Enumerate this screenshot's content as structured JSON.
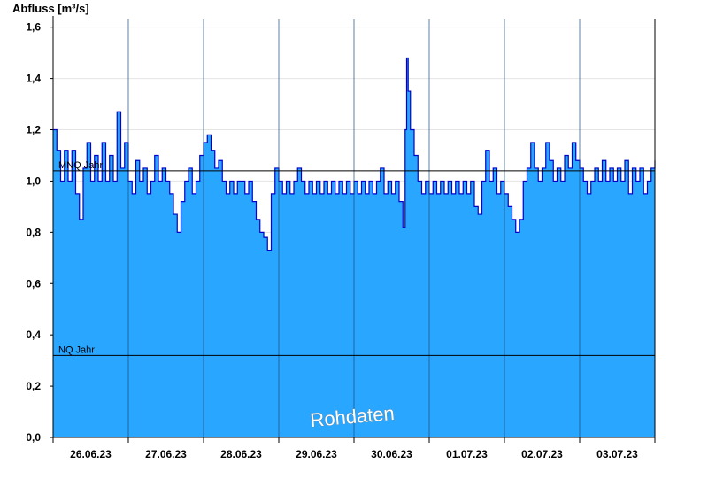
{
  "chart_data": {
    "type": "area",
    "ylabel": "Abfluss [m³/s]",
    "ylim": [
      0,
      1.63
    ],
    "yticks": [
      {
        "value": 0.0,
        "label": "0,0"
      },
      {
        "value": 0.2,
        "label": "0,2"
      },
      {
        "value": 0.4,
        "label": "0,4"
      },
      {
        "value": 0.6,
        "label": "0,6"
      },
      {
        "value": 0.8,
        "label": "0,8"
      },
      {
        "value": 1.0,
        "label": "1,0"
      },
      {
        "value": 1.2,
        "label": "1,2"
      },
      {
        "value": 1.4,
        "label": "1,4"
      },
      {
        "value": 1.6,
        "label": "1,6"
      }
    ],
    "xlim": [
      0,
      8
    ],
    "x_unit": "days since 26.06.23 00:00",
    "day_labels": [
      "26.06.23",
      "27.06.23",
      "28.06.23",
      "29.06.23",
      "30.06.23",
      "01.07.23",
      "02.07.23",
      "03.07.23"
    ],
    "grid": true,
    "reference_lines": [
      {
        "name": "MNQ Jahr",
        "value": 1.04
      },
      {
        "name": "NQ Jahr",
        "value": 0.32
      }
    ],
    "annotation": "Rohdaten",
    "series": [
      {
        "name": "Abfluss",
        "fill_color": "#29a6ff",
        "line_color": "#0000cc",
        "points": [
          [
            0.0,
            1.2
          ],
          [
            0.05,
            1.12
          ],
          [
            0.1,
            1.0
          ],
          [
            0.15,
            1.12
          ],
          [
            0.2,
            1.0
          ],
          [
            0.25,
            1.12
          ],
          [
            0.3,
            0.95
          ],
          [
            0.35,
            0.85
          ],
          [
            0.4,
            1.05
          ],
          [
            0.45,
            1.15
          ],
          [
            0.5,
            1.0
          ],
          [
            0.55,
            1.1
          ],
          [
            0.6,
            1.0
          ],
          [
            0.65,
            1.15
          ],
          [
            0.7,
            1.0
          ],
          [
            0.75,
            1.1
          ],
          [
            0.8,
            1.0
          ],
          [
            0.85,
            1.27
          ],
          [
            0.9,
            1.05
          ],
          [
            0.95,
            1.15
          ],
          [
            1.0,
            1.0
          ],
          [
            1.05,
            0.95
          ],
          [
            1.1,
            1.08
          ],
          [
            1.15,
            1.0
          ],
          [
            1.2,
            1.05
          ],
          [
            1.25,
            0.95
          ],
          [
            1.3,
            1.0
          ],
          [
            1.35,
            1.1
          ],
          [
            1.4,
            1.0
          ],
          [
            1.45,
            1.05
          ],
          [
            1.5,
            1.0
          ],
          [
            1.55,
            0.95
          ],
          [
            1.6,
            0.87
          ],
          [
            1.65,
            0.8
          ],
          [
            1.7,
            0.92
          ],
          [
            1.75,
            1.0
          ],
          [
            1.8,
            1.05
          ],
          [
            1.85,
            0.95
          ],
          [
            1.9,
            1.0
          ],
          [
            1.95,
            1.1
          ],
          [
            2.0,
            1.15
          ],
          [
            2.05,
            1.18
          ],
          [
            2.1,
            1.12
          ],
          [
            2.15,
            1.05
          ],
          [
            2.2,
            1.08
          ],
          [
            2.25,
            1.0
          ],
          [
            2.3,
            0.95
          ],
          [
            2.35,
            1.0
          ],
          [
            2.4,
            0.95
          ],
          [
            2.45,
            1.0
          ],
          [
            2.5,
            1.0
          ],
          [
            2.55,
            0.95
          ],
          [
            2.6,
            1.0
          ],
          [
            2.65,
            0.92
          ],
          [
            2.7,
            0.85
          ],
          [
            2.75,
            0.8
          ],
          [
            2.8,
            0.78
          ],
          [
            2.85,
            0.73
          ],
          [
            2.9,
            0.95
          ],
          [
            2.95,
            1.05
          ],
          [
            3.0,
            1.0
          ],
          [
            3.05,
            0.95
          ],
          [
            3.1,
            1.0
          ],
          [
            3.15,
            0.95
          ],
          [
            3.2,
            1.0
          ],
          [
            3.25,
            1.05
          ],
          [
            3.3,
            1.0
          ],
          [
            3.35,
            0.95
          ],
          [
            3.4,
            1.0
          ],
          [
            3.45,
            0.95
          ],
          [
            3.5,
            1.0
          ],
          [
            3.55,
            0.95
          ],
          [
            3.6,
            1.0
          ],
          [
            3.65,
            0.95
          ],
          [
            3.7,
            1.0
          ],
          [
            3.75,
            0.95
          ],
          [
            3.8,
            1.0
          ],
          [
            3.85,
            0.95
          ],
          [
            3.9,
            1.0
          ],
          [
            3.95,
            0.95
          ],
          [
            4.0,
            1.0
          ],
          [
            4.05,
            0.95
          ],
          [
            4.1,
            1.0
          ],
          [
            4.15,
            0.95
          ],
          [
            4.2,
            1.0
          ],
          [
            4.25,
            0.95
          ],
          [
            4.3,
            1.0
          ],
          [
            4.35,
            1.05
          ],
          [
            4.4,
            0.95
          ],
          [
            4.45,
            1.0
          ],
          [
            4.5,
            0.95
          ],
          [
            4.55,
            1.0
          ],
          [
            4.6,
            0.92
          ],
          [
            4.65,
            0.82
          ],
          [
            4.68,
            1.2
          ],
          [
            4.7,
            1.48
          ],
          [
            4.72,
            1.35
          ],
          [
            4.75,
            1.2
          ],
          [
            4.8,
            1.1
          ],
          [
            4.85,
            1.0
          ],
          [
            4.9,
            0.95
          ],
          [
            4.95,
            1.0
          ],
          [
            5.0,
            0.95
          ],
          [
            5.05,
            1.0
          ],
          [
            5.1,
            0.95
          ],
          [
            5.15,
            1.0
          ],
          [
            5.2,
            0.95
          ],
          [
            5.25,
            1.0
          ],
          [
            5.3,
            0.95
          ],
          [
            5.35,
            1.0
          ],
          [
            5.4,
            0.95
          ],
          [
            5.45,
            1.0
          ],
          [
            5.5,
            0.95
          ],
          [
            5.55,
            1.0
          ],
          [
            5.6,
            0.9
          ],
          [
            5.65,
            0.87
          ],
          [
            5.7,
            1.0
          ],
          [
            5.75,
            1.12
          ],
          [
            5.8,
            1.0
          ],
          [
            5.85,
            1.05
          ],
          [
            5.9,
            0.95
          ],
          [
            5.95,
            1.0
          ],
          [
            6.0,
            0.95
          ],
          [
            6.05,
            0.9
          ],
          [
            6.1,
            0.85
          ],
          [
            6.15,
            0.8
          ],
          [
            6.2,
            0.85
          ],
          [
            6.25,
            1.0
          ],
          [
            6.3,
            1.05
          ],
          [
            6.35,
            1.15
          ],
          [
            6.4,
            1.05
          ],
          [
            6.45,
            1.0
          ],
          [
            6.5,
            1.05
          ],
          [
            6.55,
            1.15
          ],
          [
            6.6,
            1.08
          ],
          [
            6.65,
            1.0
          ],
          [
            6.7,
            1.05
          ],
          [
            6.75,
            1.0
          ],
          [
            6.8,
            1.1
          ],
          [
            6.85,
            1.05
          ],
          [
            6.9,
            1.15
          ],
          [
            6.95,
            1.08
          ],
          [
            7.0,
            1.05
          ],
          [
            7.05,
            1.0
          ],
          [
            7.1,
            0.95
          ],
          [
            7.15,
            1.0
          ],
          [
            7.2,
            1.05
          ],
          [
            7.25,
            1.0
          ],
          [
            7.3,
            1.08
          ],
          [
            7.35,
            1.0
          ],
          [
            7.4,
            1.05
          ],
          [
            7.45,
            1.0
          ],
          [
            7.5,
            1.05
          ],
          [
            7.55,
            1.0
          ],
          [
            7.6,
            1.08
          ],
          [
            7.65,
            0.95
          ],
          [
            7.7,
            1.05
          ],
          [
            7.75,
            1.0
          ],
          [
            7.8,
            1.05
          ],
          [
            7.85,
            0.95
          ],
          [
            7.9,
            1.0
          ],
          [
            7.95,
            1.05
          ],
          [
            8.0,
            1.08
          ]
        ]
      }
    ]
  }
}
